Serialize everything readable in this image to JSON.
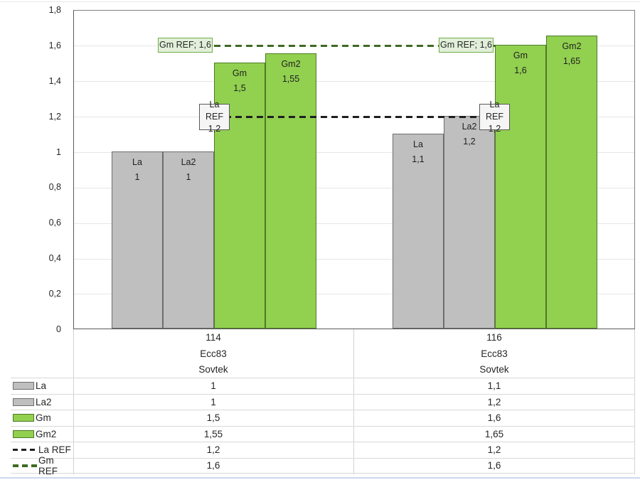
{
  "chart_data": {
    "type": "bar",
    "title": "",
    "y_axis": {
      "min": 0,
      "max": 1.8,
      "step": 0.2,
      "grid": true,
      "tick_labels": [
        "1,8",
        "1,6",
        "1,4",
        "1,2",
        "1",
        "0,8",
        "0,6",
        "0,4",
        "0,2",
        "0"
      ]
    },
    "categories": [
      {
        "lines": [
          "114",
          "Ecc83",
          "Sovtek"
        ]
      },
      {
        "lines": [
          "116",
          "Ecc83",
          "Sovtek"
        ]
      }
    ],
    "series": [
      {
        "name": "La",
        "values": [
          1,
          1.1
        ],
        "value_labels": [
          "1",
          "1,1"
        ],
        "fill": "#bfbfbf",
        "border": "#6e6e6e"
      },
      {
        "name": "La2",
        "values": [
          1,
          1.2
        ],
        "value_labels": [
          "1",
          "1,2"
        ],
        "fill": "#bfbfbf",
        "border": "#6e6e6e"
      },
      {
        "name": "Gm",
        "values": [
          1.5,
          1.6
        ],
        "value_labels": [
          "1,5",
          "1,6"
        ],
        "fill": "#92d050",
        "border": "#4e7a27"
      },
      {
        "name": "Gm2",
        "values": [
          1.55,
          1.65
        ],
        "value_labels": [
          "1,55",
          "1,65"
        ],
        "fill": "#92d050",
        "border": "#4e7a27"
      }
    ],
    "ref_lines": [
      {
        "name": "La REF",
        "value": 1.2,
        "color": "#1f1f1f",
        "label_line1": "La REF",
        "label_line2": "1,2"
      },
      {
        "name": "Gm REF",
        "value": 1.6,
        "color": "#3e6b23",
        "label": "Gm REF; 1,6"
      }
    ],
    "legend_position": "table-left"
  },
  "table": {
    "group_headers": [
      [
        "114",
        "Ecc83",
        "Sovtek"
      ],
      [
        "116",
        "Ecc83",
        "Sovtek"
      ]
    ],
    "rows": [
      {
        "label": "La",
        "key": "bar-gray",
        "col1": "1",
        "col2": "1,1"
      },
      {
        "label": "La2",
        "key": "bar-gray",
        "col1": "1",
        "col2": "1,2"
      },
      {
        "label": "Gm",
        "key": "bar-green",
        "col1": "1,5",
        "col2": "1,6"
      },
      {
        "label": "Gm2",
        "key": "bar-green",
        "col1": "1,55",
        "col2": "1,65"
      },
      {
        "label": "La REF",
        "key": "dash-black",
        "col1": "1,2",
        "col2": "1,2"
      },
      {
        "label": "Gm REF",
        "key": "dash-green",
        "col1": "1,6",
        "col2": "1,6"
      }
    ]
  }
}
